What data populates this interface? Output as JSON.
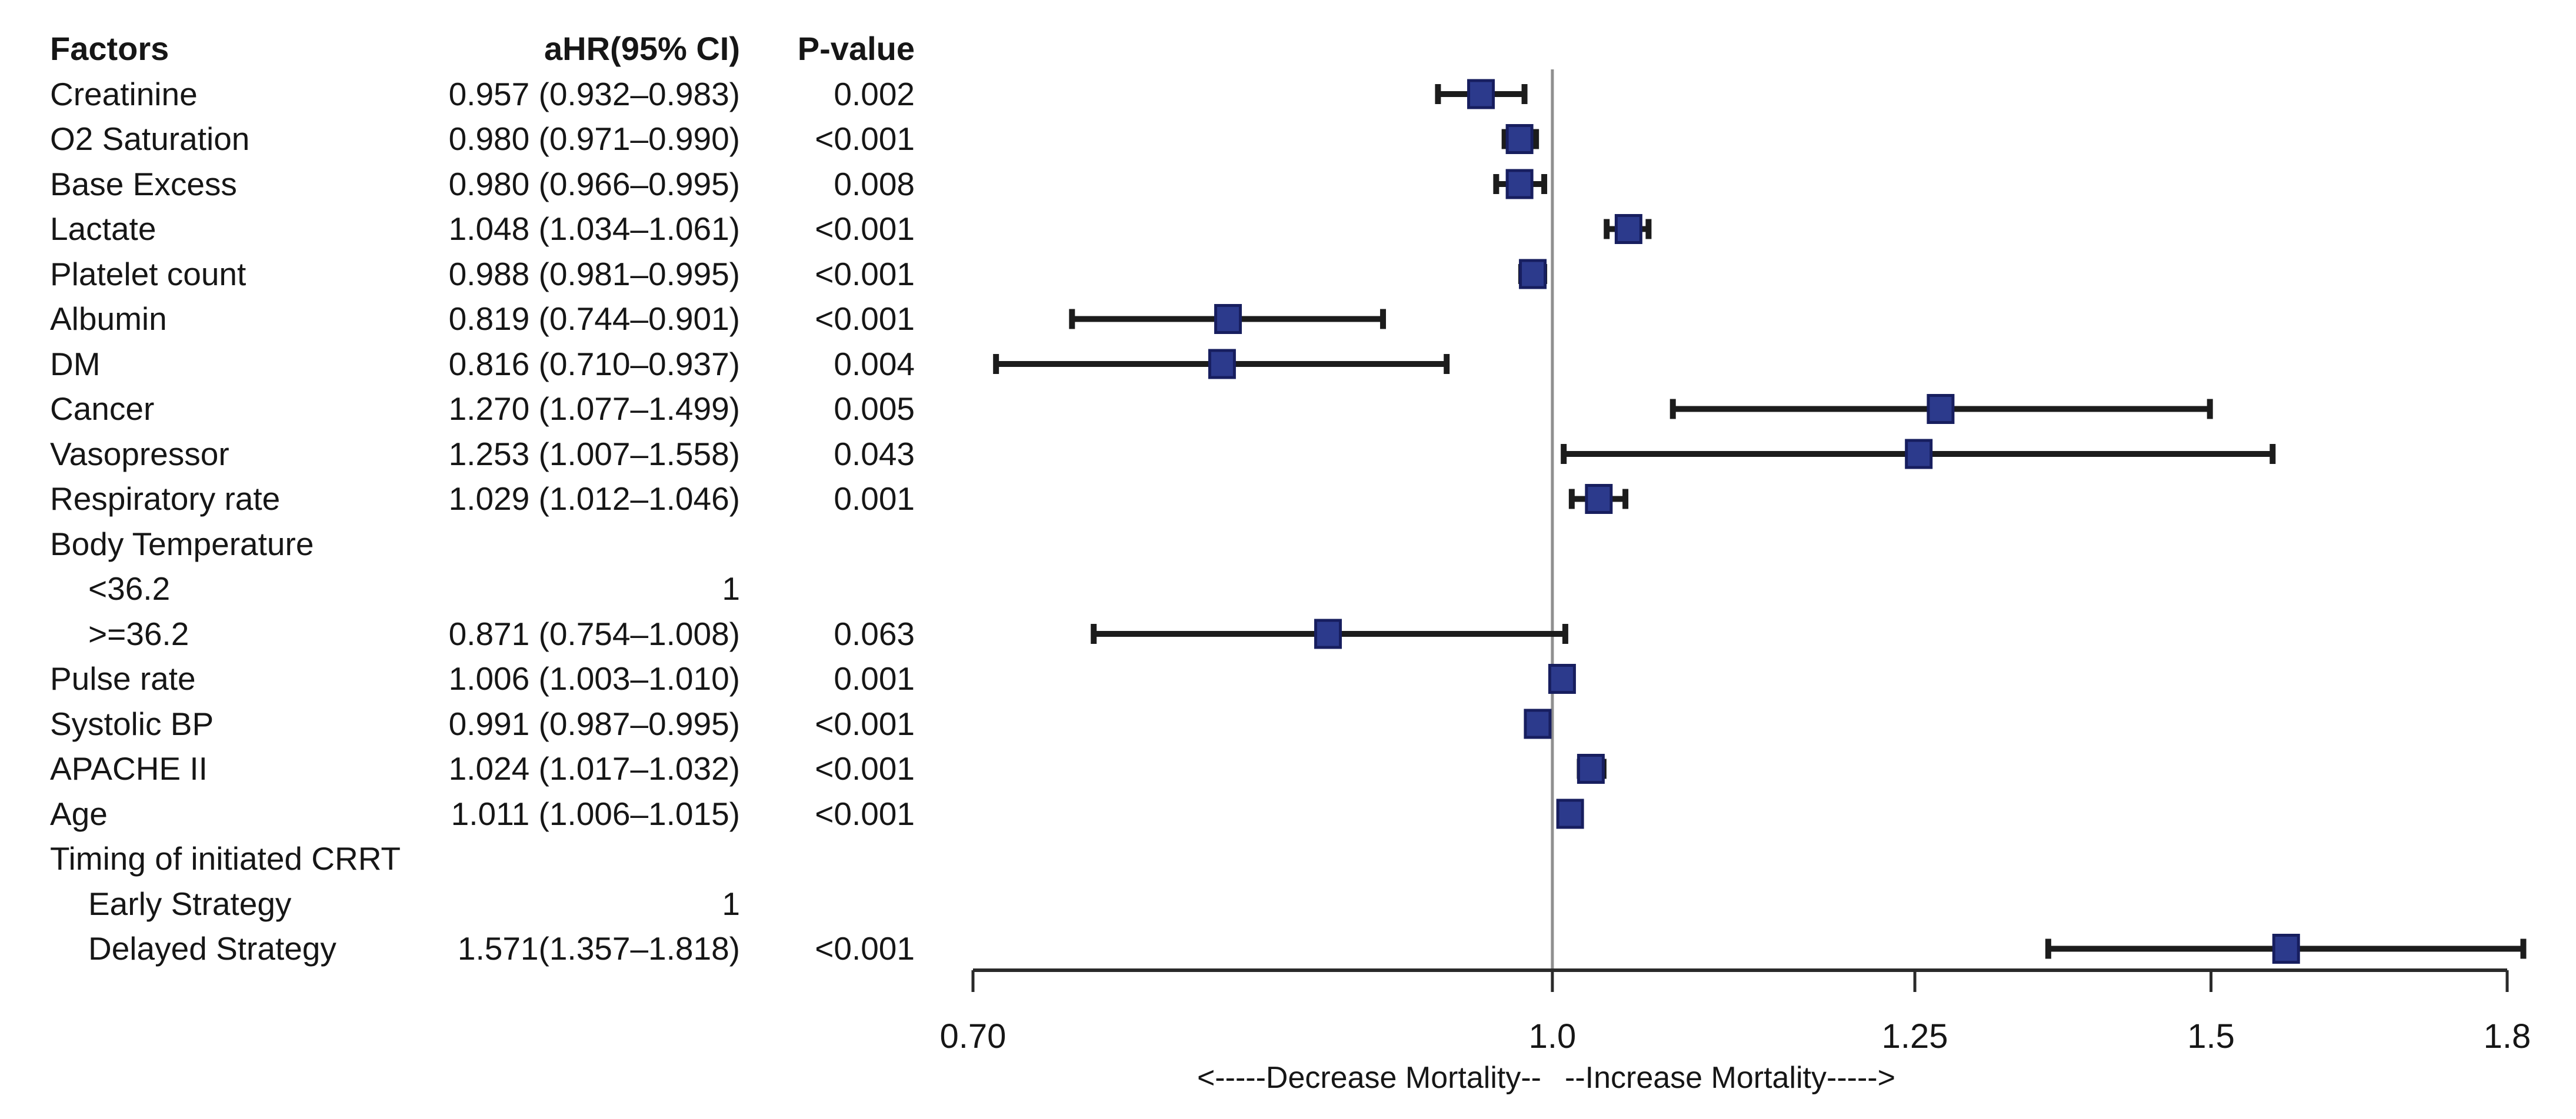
{
  "chart_data": {
    "type": "forest",
    "columns": [
      "Factors",
      "aHR(95% CI)",
      "P-value"
    ],
    "xscale": "log",
    "xlim": [
      0.7,
      1.8
    ],
    "xticks": [
      0.7,
      1.0,
      1.25,
      1.5,
      1.8
    ],
    "xtick_labels": [
      "0.70",
      "1.0",
      "1.25",
      "1.5",
      "1.8"
    ],
    "reference_line": 1.0,
    "xlabel_left": "<-----Decrease Mortality--",
    "xlabel_right": "--Increase Mortality----->",
    "legend_position": "none",
    "grid": false,
    "marker_fill": "#2c3a8c",
    "marker_border": "#171e5f",
    "whisker_color": "#1c1c1c",
    "axis_color": "#2a2a2a",
    "reference_line_color": "#8f8f8f",
    "rows": [
      {
        "factor": "Creatinine",
        "indent": false,
        "ahr_text": "0.957 (0.932–0.983)",
        "p": "0.002",
        "est": 0.957,
        "lo": 0.932,
        "hi": 0.983
      },
      {
        "factor": "O2 Saturation",
        "indent": false,
        "ahr_text": "0.980 (0.971–0.990)",
        "p": "<0.001",
        "est": 0.98,
        "lo": 0.971,
        "hi": 0.99
      },
      {
        "factor": "Base Excess",
        "indent": false,
        "ahr_text": "0.980 (0.966–0.995)",
        "p": "0.008",
        "est": 0.98,
        "lo": 0.966,
        "hi": 0.995
      },
      {
        "factor": "Lactate",
        "indent": false,
        "ahr_text": "1.048 (1.034–1.061)",
        "p": "<0.001",
        "est": 1.048,
        "lo": 1.034,
        "hi": 1.061
      },
      {
        "factor": "Platelet count",
        "indent": false,
        "ahr_text": "0.988 (0.981–0.995)",
        "p": "<0.001",
        "est": 0.988,
        "lo": 0.981,
        "hi": 0.995
      },
      {
        "factor": "Albumin",
        "indent": false,
        "ahr_text": "0.819 (0.744–0.901)",
        "p": "<0.001",
        "est": 0.819,
        "lo": 0.744,
        "hi": 0.901
      },
      {
        "factor": "DM",
        "indent": false,
        "ahr_text": "0.816 (0.710–0.937)",
        "p": "0.004",
        "est": 0.816,
        "lo": 0.71,
        "hi": 0.937
      },
      {
        "factor": "Cancer",
        "indent": false,
        "ahr_text": "1.270 (1.077–1.499)",
        "p": "0.005",
        "est": 1.27,
        "lo": 1.077,
        "hi": 1.499
      },
      {
        "factor": "Vasopressor",
        "indent": false,
        "ahr_text": "1.253 (1.007–1.558)",
        "p": "0.043",
        "est": 1.253,
        "lo": 1.007,
        "hi": 1.558
      },
      {
        "factor": "Respiratory rate",
        "indent": false,
        "ahr_text": "1.029 (1.012–1.046)",
        "p": "0.001",
        "est": 1.029,
        "lo": 1.012,
        "hi": 1.046
      },
      {
        "factor": "Body Temperature",
        "indent": false,
        "ahr_text": "",
        "p": "",
        "est": null,
        "lo": null,
        "hi": null
      },
      {
        "factor": "<36.2",
        "indent": true,
        "ahr_text": "1",
        "p": "",
        "est": null,
        "lo": null,
        "hi": null
      },
      {
        "factor": ">=36.2",
        "indent": true,
        "ahr_text": "0.871 (0.754–1.008)",
        "p": "0.063",
        "est": 0.871,
        "lo": 0.754,
        "hi": 1.008
      },
      {
        "factor": "Pulse rate",
        "indent": false,
        "ahr_text": "1.006 (1.003–1.010)",
        "p": "0.001",
        "est": 1.006,
        "lo": 1.003,
        "hi": 1.01
      },
      {
        "factor": "Systolic BP",
        "indent": false,
        "ahr_text": "0.991 (0.987–0.995)",
        "p": "<0.001",
        "est": 0.991,
        "lo": 0.987,
        "hi": 0.995
      },
      {
        "factor": "APACHE II",
        "indent": false,
        "ahr_text": "1.024 (1.017–1.032)",
        "p": "<0.001",
        "est": 1.024,
        "lo": 1.017,
        "hi": 1.032
      },
      {
        "factor": "Age",
        "indent": false,
        "ahr_text": "1.011 (1.006–1.015)",
        "p": "<0.001",
        "est": 1.011,
        "lo": 1.006,
        "hi": 1.015
      },
      {
        "factor": "Timing of initiated CRRT",
        "indent": false,
        "ahr_text": "",
        "p": "",
        "est": null,
        "lo": null,
        "hi": null
      },
      {
        "factor": "Early Strategy",
        "indent": true,
        "ahr_text": "1",
        "p": "",
        "est": null,
        "lo": null,
        "hi": null
      },
      {
        "factor": "Delayed Strategy",
        "indent": true,
        "ahr_text": "1.571(1.357–1.818)",
        "p": "<0.001",
        "est": 1.571,
        "lo": 1.357,
        "hi": 1.818
      }
    ]
  }
}
